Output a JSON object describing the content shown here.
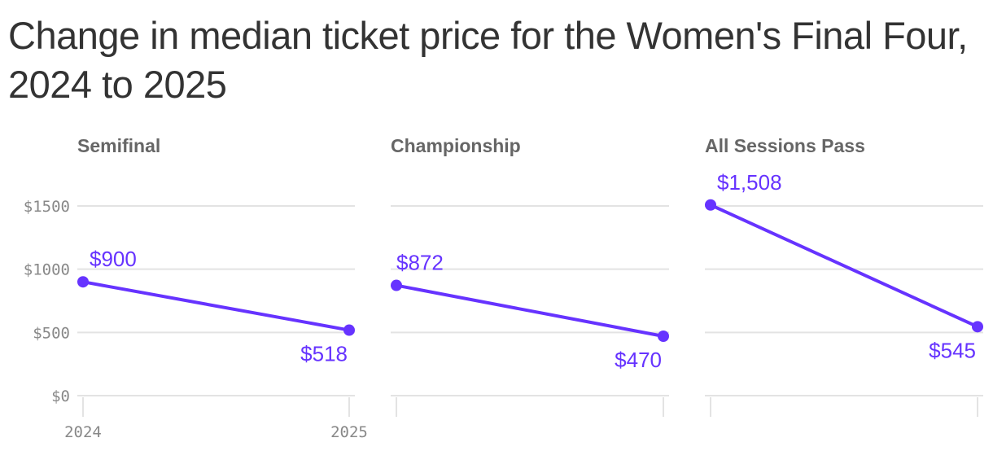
{
  "chart_data": {
    "type": "line",
    "title": "Change in median ticket price for the Women's Final Four, 2024 to 2025",
    "x": [
      "2024",
      "2025"
    ],
    "ylim": [
      0,
      1500
    ],
    "yticks": [
      0,
      500,
      1000,
      1500
    ],
    "ytick_labels": [
      "$0",
      "$500",
      "$1000",
      "$1500"
    ],
    "grid": true,
    "color": "#6633ff",
    "panels": [
      {
        "title": "Semifinal",
        "values": [
          900,
          518
        ],
        "labels": [
          "$900",
          "$518"
        ]
      },
      {
        "title": "Championship",
        "values": [
          872,
          470
        ],
        "labels": [
          "$872",
          "$470"
        ]
      },
      {
        "title": "All Sessions Pass",
        "values": [
          1508,
          545
        ],
        "labels": [
          "$1,508",
          "$545"
        ]
      }
    ]
  }
}
